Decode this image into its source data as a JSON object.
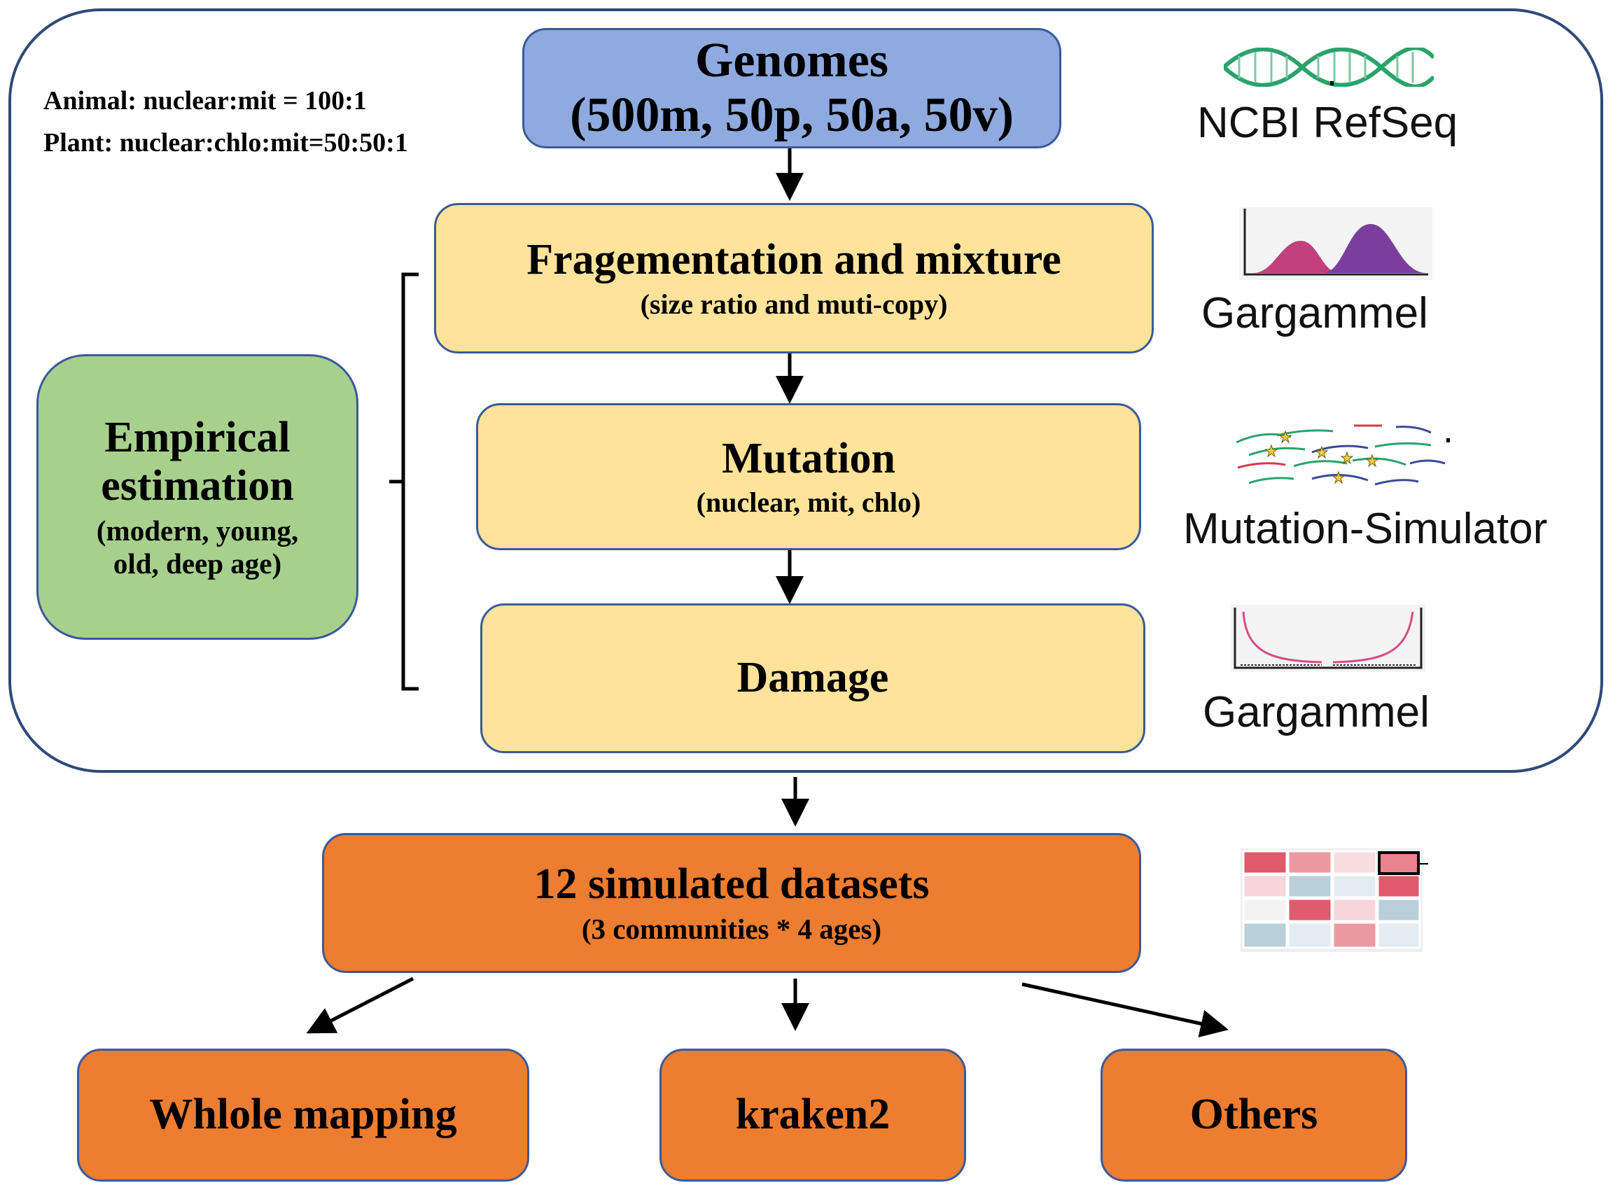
{
  "pipeline": {
    "genomes": {
      "title": "Genomes",
      "subtitle": "(500m, 50p, 50a, 50v)"
    },
    "ratios": {
      "animal": "Animal: nuclear:mit = 100:1",
      "plant": "Plant: nuclear:chlo:mit=50:50:1"
    },
    "fragmentation": {
      "title": "Fragementation and mixture",
      "subtitle": "(size ratio and muti-copy)"
    },
    "mutation": {
      "title": "Mutation",
      "subtitle": "(nuclear, mit, chlo)"
    },
    "damage": {
      "title": "Damage"
    },
    "empirical": {
      "line1": "Empirical",
      "line2": "estimation",
      "line3": "(modern, young,",
      "line4": "old, deep age)"
    },
    "datasets": {
      "title": "12 simulated datasets",
      "subtitle": "(3 communities * 4 ages)"
    },
    "outputs": {
      "whole_mapping": "Whlole mapping",
      "kraken2": "kraken2",
      "others": "Others"
    }
  },
  "tools": {
    "ncbi": {
      "label": "NCBI RefSeq",
      "icon": "dna-helix-icon"
    },
    "gargammel_fragment": {
      "label": "Gargammel",
      "icon": "length-distribution-icon"
    },
    "mutation_simulator": {
      "label": "Mutation-Simulator",
      "icon": "mutated-reads-icon"
    },
    "gargammel_damage": {
      "label": "Gargammel",
      "icon": "damage-curve-icon"
    },
    "datasets_icon": {
      "icon": "heatmap-grid-icon"
    }
  },
  "colors": {
    "genomes_box": "#8eaadf",
    "process_box": "#ffe39a",
    "empirical_box": "#a8d08d",
    "dataset_box": "#ed7d31",
    "border": "#3a5a9a"
  }
}
